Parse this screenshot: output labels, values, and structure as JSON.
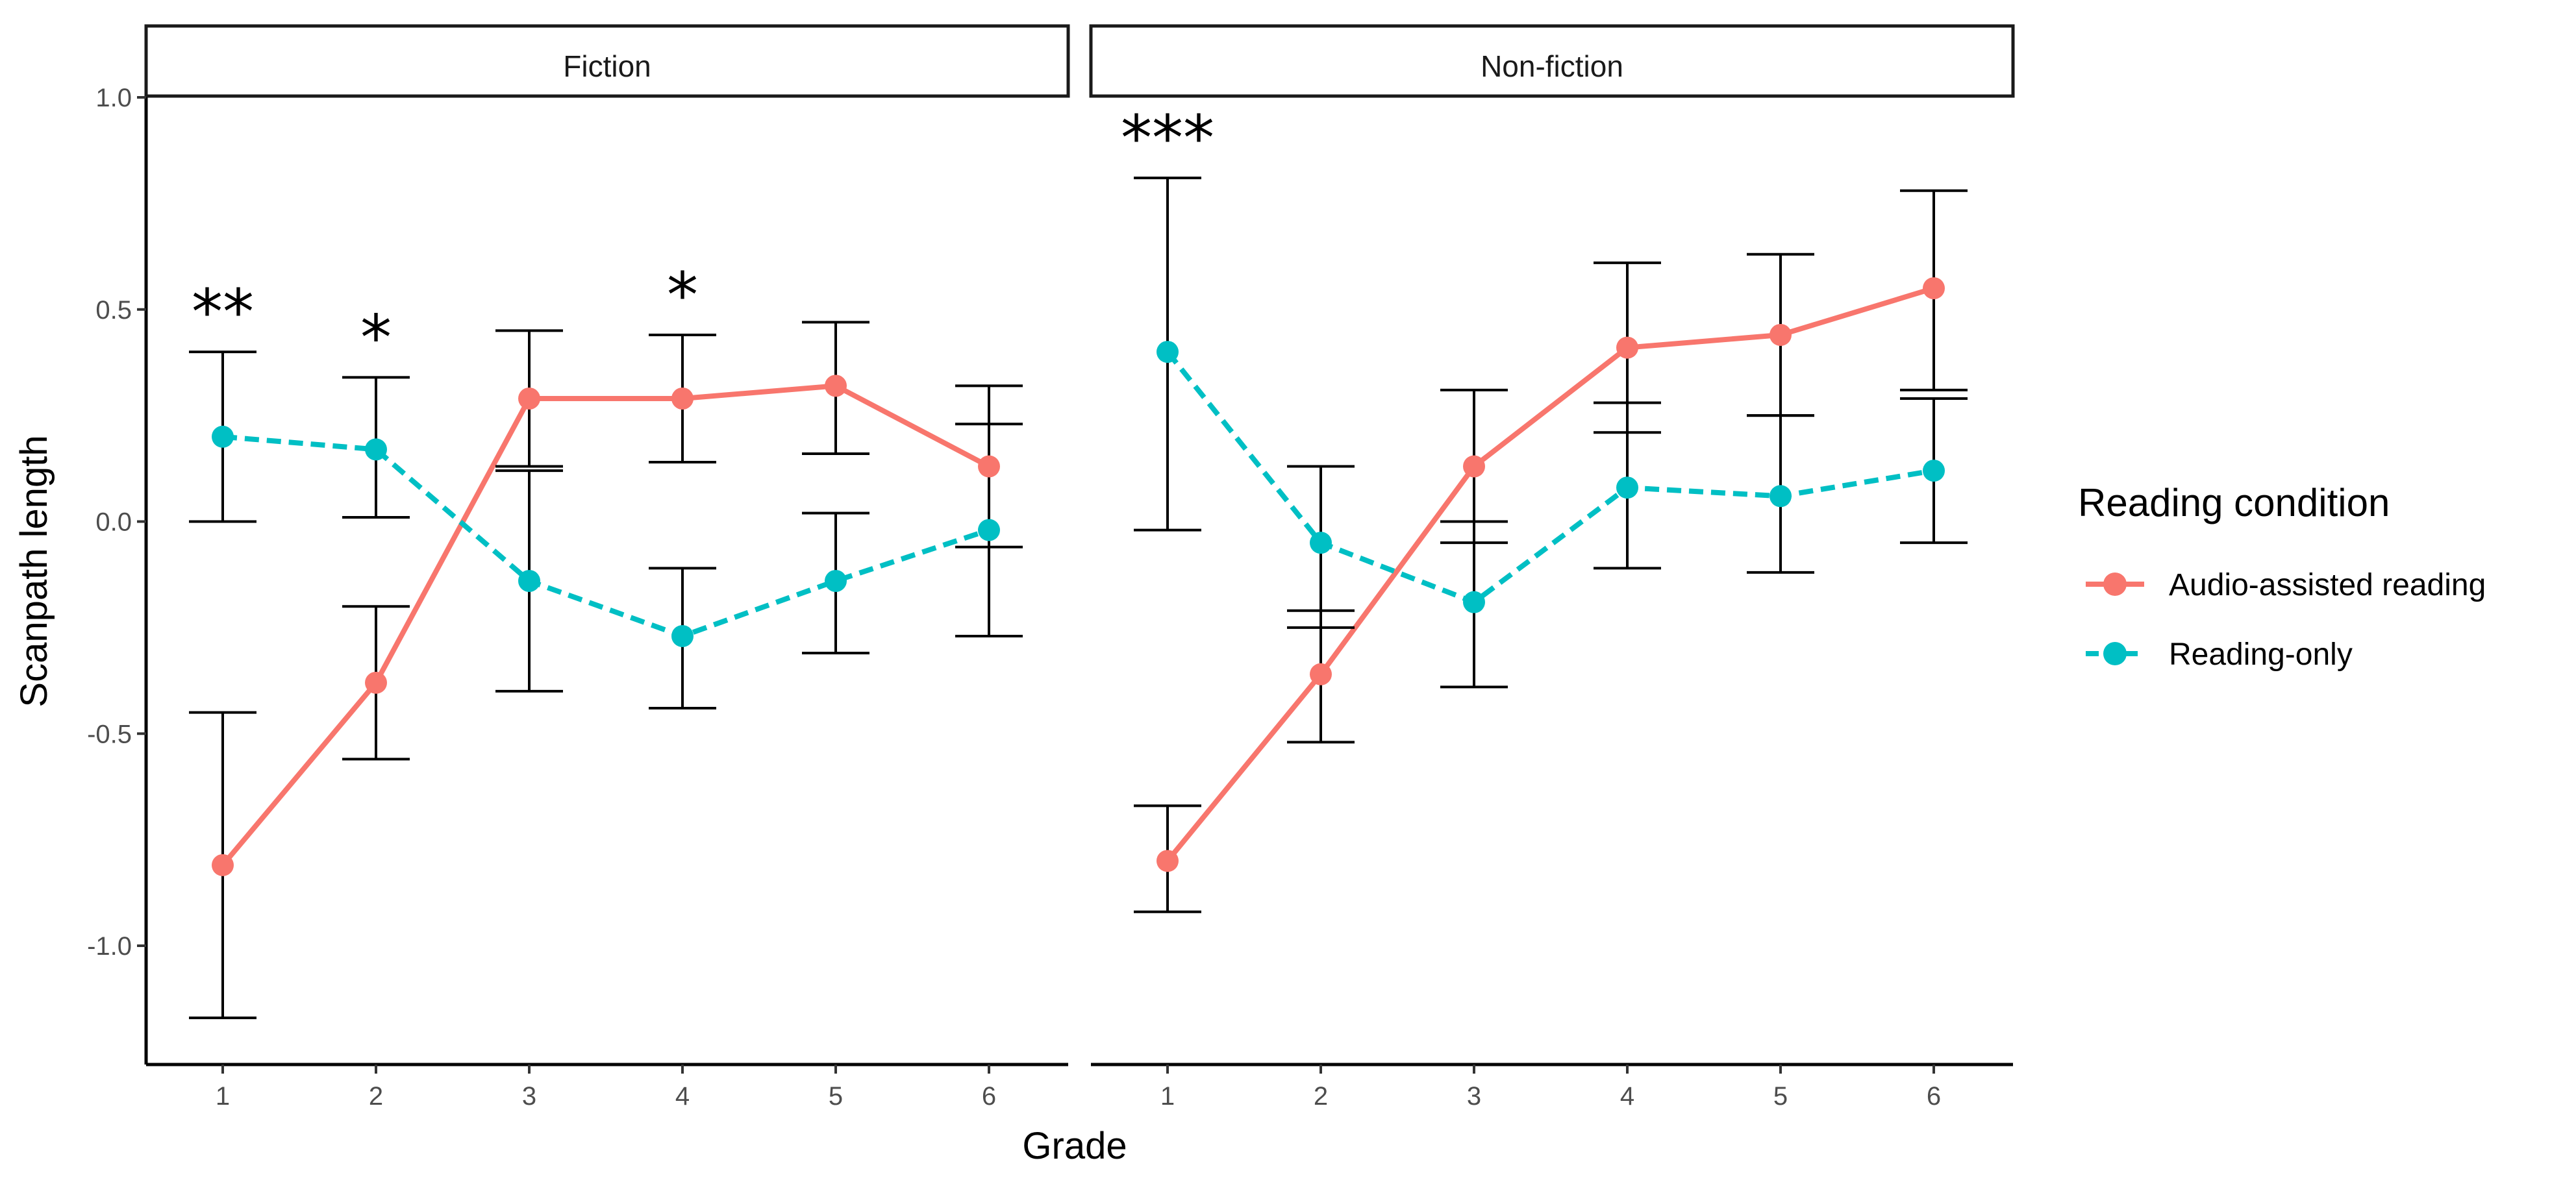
{
  "chart_data": {
    "type": "line",
    "x_label": "Grade",
    "y_label": "Scanpath length",
    "y_ticks": [
      "-1.0",
      "-0.5",
      "0.0",
      "0.5",
      "1.0"
    ],
    "ylim": [
      -1.28,
      1.0
    ],
    "x_categories": [
      "1",
      "2",
      "3",
      "4",
      "5",
      "6"
    ],
    "legend": {
      "title": "Reading condition",
      "items": [
        {
          "label": "Audio-assisted reading",
          "color": "#f8766d"
        },
        {
          "label": "Reading-only",
          "color": "#00bfc4"
        }
      ]
    },
    "panels": [
      {
        "title": "Fiction",
        "series": [
          {
            "name": "Audio-assisted reading",
            "color": "#f8766d",
            "dash": "solid",
            "values": [
              -0.81,
              -0.38,
              0.29,
              0.29,
              0.32,
              0.13
            ],
            "lower": [
              -1.17,
              -0.56,
              0.13,
              0.14,
              0.16,
              -0.06
            ],
            "upper": [
              -0.45,
              -0.2,
              0.45,
              0.44,
              0.47,
              0.32
            ]
          },
          {
            "name": "Reading-only",
            "color": "#00bfc4",
            "dash": "dashed",
            "values": [
              0.2,
              0.17,
              -0.14,
              -0.27,
              -0.14,
              -0.02
            ],
            "lower": [
              0.0,
              0.01,
              -0.4,
              -0.44,
              -0.31,
              -0.27
            ],
            "upper": [
              0.4,
              0.34,
              0.12,
              -0.11,
              0.02,
              0.23
            ]
          }
        ],
        "annotations": [
          {
            "grade": "1",
            "text": "**"
          },
          {
            "grade": "2",
            "text": "*"
          },
          {
            "grade": "4",
            "text": "*"
          }
        ]
      },
      {
        "title": "Non-fiction",
        "series": [
          {
            "name": "Audio-assisted reading",
            "color": "#f8766d",
            "dash": "solid",
            "values": [
              -0.8,
              -0.36,
              0.13,
              0.41,
              0.44,
              0.55
            ],
            "lower": [
              -0.92,
              -0.52,
              -0.05,
              0.21,
              0.25,
              0.31
            ],
            "upper": [
              -0.67,
              -0.21,
              0.31,
              0.61,
              0.63,
              0.78
            ]
          },
          {
            "name": "Reading-only",
            "color": "#00bfc4",
            "dash": "dashed",
            "values": [
              0.4,
              -0.05,
              -0.19,
              0.08,
              0.06,
              0.12
            ],
            "lower": [
              -0.02,
              -0.25,
              -0.39,
              -0.11,
              -0.12,
              -0.05
            ],
            "upper": [
              0.81,
              0.13,
              0.0,
              0.28,
              0.25,
              0.29
            ]
          }
        ],
        "annotations": [
          {
            "grade": "1",
            "text": "***"
          }
        ]
      }
    ]
  }
}
